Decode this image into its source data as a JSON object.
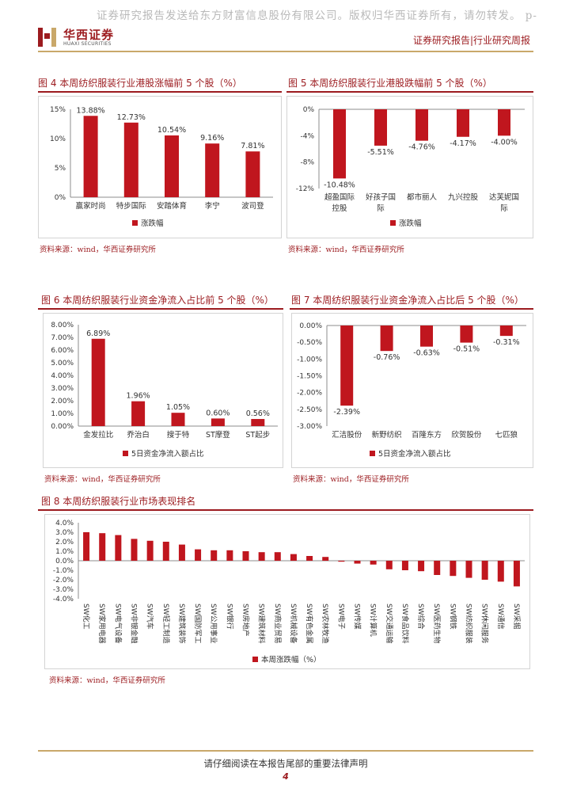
{
  "watermark": "证券研究报告发送给东方财富信息股份有限公司。版权归华西证券所有，请勿转发。 p-",
  "header": {
    "brand_cn": "华西证券",
    "brand_en": "HUAXI SECURITIES",
    "report_type": "证券研究报告|行业研究周报"
  },
  "figures": [
    {
      "id": "fig4",
      "title": "图 4  本周纺织服装行业港股涨幅前 5 个股（%）",
      "source": "资料来源：wind，华西证券研究所",
      "chart_data": {
        "type": "bar",
        "categories": [
          "赢家时尚",
          "特步国际",
          "安踏体育",
          "李宁",
          "波司登"
        ],
        "values": [
          13.88,
          12.73,
          10.54,
          9.16,
          7.81
        ],
        "labels": [
          "13.88%",
          "12.73%",
          "10.54%",
          "9.16%",
          "7.81%"
        ],
        "yticks": [
          "15%",
          "10%",
          "5%",
          "0%"
        ],
        "ylim": [
          0,
          15
        ],
        "legend": "涨跌幅",
        "color": "#c0161e"
      }
    },
    {
      "id": "fig5",
      "title": "图 5  本周纺织服装行业港股跌幅前 5 个股（%）",
      "source": "资料来源：wind，华西证券研究所",
      "chart_data": {
        "type": "bar",
        "categories": [
          "超盈国际控股",
          "好孩子国际",
          "都市丽人",
          "九兴控股",
          "达芙妮国际"
        ],
        "values": [
          -10.48,
          -5.51,
          -4.76,
          -4.17,
          -4.0
        ],
        "labels": [
          "-10.48%",
          "-5.51%",
          "-4.76%",
          "-4.17%",
          "-4.00%"
        ],
        "yticks": [
          "0%",
          "-4%",
          "-8%",
          "-12%"
        ],
        "ylim": [
          -12,
          0
        ],
        "legend": "涨跌幅",
        "color": "#c0161e"
      }
    },
    {
      "id": "fig6",
      "title": "图 6  本周纺织服装行业资金净流入占比前 5 个股（%）",
      "source": "资料来源：wind，华西证券研究所",
      "chart_data": {
        "type": "bar",
        "categories": [
          "金发拉比",
          "乔治白",
          "搜于特",
          "ST摩登",
          "ST起步"
        ],
        "values": [
          6.89,
          1.96,
          1.05,
          0.6,
          0.56
        ],
        "labels": [
          "6.89%",
          "1.96%",
          "1.05%",
          "0.60%",
          "0.56%"
        ],
        "yticks": [
          "8.00%",
          "7.00%",
          "6.00%",
          "5.00%",
          "4.00%",
          "3.00%",
          "2.00%",
          "1.00%",
          "0.00%"
        ],
        "ylim": [
          0,
          8
        ],
        "legend": "5日资金净流入额占比",
        "color": "#c0161e"
      }
    },
    {
      "id": "fig7",
      "title": "图 7  本周纺织服装行业资金净流入占比后 5 个股（%）",
      "source": "资料来源：wind，华西证券研究所",
      "chart_data": {
        "type": "bar",
        "categories": [
          "汇洁股份",
          "新野纺织",
          "百隆东方",
          "欣贺股份",
          "七匹狼"
        ],
        "values": [
          -2.39,
          -0.76,
          -0.63,
          -0.51,
          -0.31
        ],
        "labels": [
          "-2.39%",
          "-0.76%",
          "-0.63%",
          "-0.51%",
          "-0.31%"
        ],
        "yticks": [
          "0.00%",
          "-0.50%",
          "-1.00%",
          "-1.50%",
          "-2.00%",
          "-2.50%",
          "-3.00%"
        ],
        "ylim": [
          -3,
          0
        ],
        "legend": "5日资金净流入额占比",
        "color": "#c0161e"
      }
    },
    {
      "id": "fig8",
      "title": "图 8  本周纺织服装行业市场表现排名",
      "source": "资料来源：wind，华西证券研究所",
      "chart_data": {
        "type": "bar",
        "categories": [
          "SW化工",
          "SW家用电器",
          "SW电气设备",
          "SW非银金融",
          "SW汽车",
          "SW轻工制造",
          "SW建筑装饰",
          "SW国防军工",
          "SW公用事业",
          "SW银行",
          "SW房地产",
          "SW建筑材料",
          "SW商业贸易",
          "SW机械设备",
          "SW有色金属",
          "SW农林牧渔",
          "SW电子",
          "SW传媒",
          "SW计算机",
          "SW交通运输",
          "SW食品饮料",
          "SW综合",
          "SW医药生物",
          "SW钢铁",
          "SW纺织服装",
          "SW休闲服务",
          "SW通信",
          "SW采掘"
        ],
        "values": [
          3.0,
          2.9,
          2.7,
          2.3,
          2.1,
          2.0,
          1.7,
          1.2,
          1.1,
          1.1,
          1.0,
          0.9,
          0.9,
          0.7,
          0.5,
          0.4,
          -0.1,
          -0.3,
          -0.4,
          -0.9,
          -1.0,
          -1.1,
          -1.5,
          -1.6,
          -1.8,
          -2.0,
          -2.2,
          -2.7
        ],
        "yticks": [
          "4.0%",
          "3.0%",
          "2.0%",
          "1.0%",
          "0.0%",
          "-1.0%",
          "-2.0%",
          "-3.0%",
          "-4.0%"
        ],
        "ylim": [
          -4,
          4
        ],
        "legend": "本周涨跌幅（%）",
        "color": "#c0161e"
      }
    }
  ],
  "footer": {
    "note": "请仔细阅读在本报告尾部的重要法律声明",
    "page": "4"
  }
}
